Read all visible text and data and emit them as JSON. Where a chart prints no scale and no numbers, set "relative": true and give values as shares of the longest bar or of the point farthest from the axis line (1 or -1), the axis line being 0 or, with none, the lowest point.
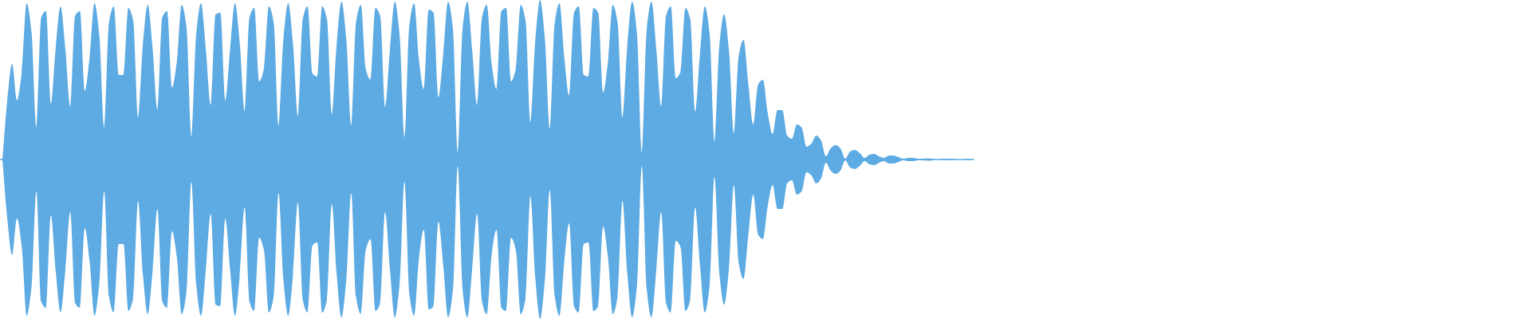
{
  "chart_data": {
    "type": "area",
    "relative": true,
    "categories": [
      null,
      null,
      null,
      null,
      null,
      null,
      null,
      null,
      null,
      null,
      null,
      null,
      null,
      null,
      null,
      null,
      null,
      null,
      null,
      null,
      null,
      null,
      null,
      null,
      null,
      null,
      null,
      null,
      null,
      null,
      null,
      null,
      null,
      null,
      null,
      null,
      null,
      null,
      null,
      null,
      null,
      null,
      null,
      null,
      null,
      null,
      null,
      null,
      null,
      null,
      null,
      null,
      null,
      null,
      null,
      null,
      null,
      null,
      null,
      null,
      null,
      null,
      null,
      null,
      null,
      null,
      null,
      null,
      null,
      null,
      null,
      null,
      null,
      null,
      null,
      null,
      null,
      null,
      null,
      null,
      null,
      null,
      null,
      null,
      null,
      null,
      null,
      null,
      null,
      null,
      null,
      null,
      null,
      null,
      null,
      null,
      null,
      null,
      null,
      null,
      null,
      null,
      null,
      null,
      null,
      null,
      null,
      null,
      null,
      null,
      null,
      null,
      null,
      null,
      null,
      null,
      null,
      null,
      null,
      null,
      null,
      null,
      null,
      null,
      null,
      null,
      null,
      null,
      null,
      null,
      null,
      null,
      null,
      null,
      null,
      null,
      null,
      null,
      null,
      null,
      null,
      null,
      null,
      null,
      null,
      null,
      null,
      null,
      null,
      null,
      null,
      null,
      null,
      null,
      null,
      null,
      null,
      null,
      null,
      null,
      null,
      null,
      null,
      null,
      null,
      null,
      null,
      null,
      null,
      null,
      null,
      null,
      null,
      null,
      null,
      null,
      null,
      null,
      null,
      null,
      null,
      null,
      null,
      null,
      null,
      null,
      null,
      null,
      null,
      null,
      null,
      null,
      null,
      null,
      null,
      null,
      null,
      null,
      null,
      null,
      null
    ],
    "series": [
      {
        "color": "#5dabe2",
        "values": [
          0,
          0.37,
          0.6,
          0.37,
          0.55,
          0.98,
          0.8,
          0.2,
          0.89,
          0.93,
          0.35,
          0.7,
          0.96,
          0.69,
          0.33,
          0.9,
          0.93,
          0.43,
          0.64,
          0.98,
          0.78,
          0.2,
          0.86,
          0.96,
          0.53,
          0.53,
          0.95,
          0.87,
          0.26,
          0.72,
          0.97,
          0.7,
          0.31,
          0.89,
          0.93,
          0.45,
          0.61,
          0.97,
          0.83,
          0.14,
          0.78,
          0.98,
          0.69,
          0.34,
          0.91,
          0.92,
          0.37,
          0.69,
          0.98,
          0.73,
          0.3,
          0.89,
          0.95,
          0.49,
          0.57,
          0.96,
          0.86,
          0.21,
          0.75,
          0.98,
          0.72,
          0.27,
          0.88,
          0.96,
          0.54,
          0.52,
          0.96,
          0.88,
          0.28,
          0.72,
          0.99,
          0.75,
          0.21,
          0.86,
          0.97,
          0.57,
          0.5,
          0.95,
          0.9,
          0.33,
          0.69,
          0.99,
          0.78,
          0.14,
          0.84,
          0.98,
          0.62,
          0.44,
          0.94,
          0.92,
          0.39,
          0.66,
          0.99,
          0.82,
          0.04,
          0.82,
          0.99,
          0.68,
          0.34,
          0.89,
          0.97,
          0.6,
          0.44,
          0.93,
          0.95,
          0.49,
          0.57,
          0.97,
          0.87,
          0.23,
          0.74,
          1,
          0.75,
          0.19,
          0.85,
          0.98,
          0.64,
          0.4,
          0.92,
          0.96,
          0.53,
          0.52,
          0.95,
          0.92,
          0.42,
          0.61,
          0.97,
          0.86,
          0.26,
          0.71,
          0.99,
          0.79,
          0.04,
          0.81,
          0.99,
          0.69,
          0.33,
          0.9,
          0.96,
          0.51,
          0.55,
          0.95,
          0.88,
          0.3,
          0.66,
          0.96,
          0.79,
          0.11,
          0.71,
          0.91,
          0.68,
          0.16,
          0.65,
          0.75,
          0.47,
          0.22,
          0.47,
          0.5,
          0.29,
          0.16,
          0.31,
          0.31,
          0.15,
          0.13,
          0.22,
          0.2,
          0.08,
          0.1,
          0.15,
          0.12,
          0.02,
          0.07,
          0.09,
          0.07,
          0.005,
          0.05,
          0.06,
          0.04,
          0.01,
          0.03,
          0.035,
          0.02,
          0.01,
          0.025,
          0.025,
          0.015,
          0.005,
          0.01,
          0.01,
          0.005,
          0.005,
          0.008,
          0.005,
          0,
          0.004,
          0.004,
          0.004,
          0,
          0,
          0.003,
          0.003
        ]
      },
      {
        "color": "#5dabe2",
        "values": [
          0,
          -0.37,
          -0.6,
          -0.37,
          -0.55,
          -0.98,
          -0.8,
          -0.2,
          -0.89,
          -0.93,
          -0.35,
          -0.7,
          -0.96,
          -0.69,
          -0.33,
          -0.9,
          -0.93,
          -0.43,
          -0.64,
          -0.98,
          -0.78,
          -0.2,
          -0.86,
          -0.96,
          -0.53,
          -0.53,
          -0.95,
          -0.87,
          -0.26,
          -0.72,
          -0.97,
          -0.7,
          -0.31,
          -0.89,
          -0.93,
          -0.45,
          -0.61,
          -0.97,
          -0.83,
          -0.14,
          -0.78,
          -0.98,
          -0.69,
          -0.34,
          -0.91,
          -0.92,
          -0.37,
          -0.69,
          -0.98,
          -0.73,
          -0.3,
          -0.89,
          -0.95,
          -0.49,
          -0.57,
          -0.96,
          -0.86,
          -0.21,
          -0.75,
          -0.98,
          -0.72,
          -0.27,
          -0.88,
          -0.96,
          -0.54,
          -0.52,
          -0.96,
          -0.88,
          -0.28,
          -0.72,
          -0.99,
          -0.75,
          -0.21,
          -0.86,
          -0.97,
          -0.57,
          -0.5,
          -0.95,
          -0.9,
          -0.33,
          -0.69,
          -0.99,
          -0.78,
          -0.14,
          -0.84,
          -0.98,
          -0.62,
          -0.44,
          -0.94,
          -0.92,
          -0.39,
          -0.66,
          -0.99,
          -0.82,
          -0.04,
          -0.82,
          -0.99,
          -0.68,
          -0.34,
          -0.89,
          -0.97,
          -0.6,
          -0.44,
          -0.93,
          -0.95,
          -0.49,
          -0.57,
          -0.97,
          -0.87,
          -0.23,
          -0.74,
          -1,
          -0.75,
          -0.19,
          -0.85,
          -0.98,
          -0.64,
          -0.4,
          -0.92,
          -0.96,
          -0.53,
          -0.52,
          -0.95,
          -0.92,
          -0.42,
          -0.61,
          -0.97,
          -0.86,
          -0.26,
          -0.71,
          -0.99,
          -0.79,
          -0.04,
          -0.81,
          -0.99,
          -0.69,
          -0.33,
          -0.9,
          -0.96,
          -0.51,
          -0.55,
          -0.95,
          -0.88,
          -0.3,
          -0.66,
          -0.96,
          -0.79,
          -0.11,
          -0.71,
          -0.91,
          -0.68,
          -0.16,
          -0.65,
          -0.75,
          -0.47,
          -0.22,
          -0.47,
          -0.5,
          -0.29,
          -0.16,
          -0.31,
          -0.31,
          -0.15,
          -0.13,
          -0.22,
          -0.2,
          -0.08,
          -0.1,
          -0.15,
          -0.12,
          -0.02,
          -0.07,
          -0.09,
          -0.07,
          -0.005,
          -0.05,
          -0.06,
          -0.04,
          -0.01,
          -0.03,
          -0.035,
          -0.02,
          -0.01,
          -0.025,
          -0.025,
          -0.015,
          -0.005,
          -0.01,
          -0.01,
          -0.005,
          -0.005,
          -0.008,
          -0.005,
          0,
          -0.004,
          -0.004,
          -0.004,
          0,
          0,
          -0.003,
          -0.003
        ]
      }
    ]
  }
}
